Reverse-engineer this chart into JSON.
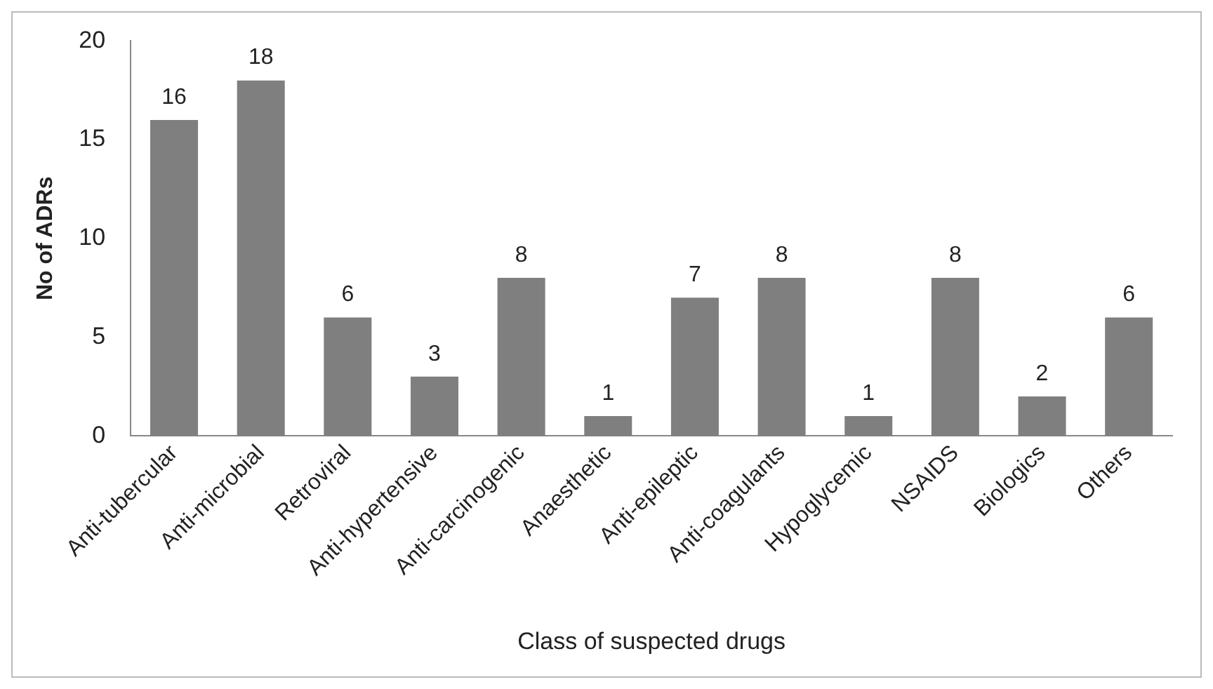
{
  "chart_data": {
    "type": "bar",
    "xlabel": "Class of suspected drugs",
    "ylabel": "No of ADRs",
    "categories": [
      "Anti-tubercular",
      "Anti-microbial",
      "Retroviral",
      "Anti-hypertensive",
      "Anti-carcinogenic",
      "Anaesthetic",
      "Anti-epileptic",
      "Anti-coagulants",
      "Hypoglycemic",
      "NSAIDS",
      "Biologics",
      "Others"
    ],
    "values": [
      16,
      18,
      6,
      3,
      8,
      1,
      7,
      8,
      1,
      8,
      2,
      6
    ],
    "color": "#7f7f7f",
    "ylim": [
      0,
      20
    ],
    "yticks": [
      0,
      5,
      10,
      15,
      20
    ],
    "grid": false,
    "legend": false,
    "data_labels": true
  }
}
